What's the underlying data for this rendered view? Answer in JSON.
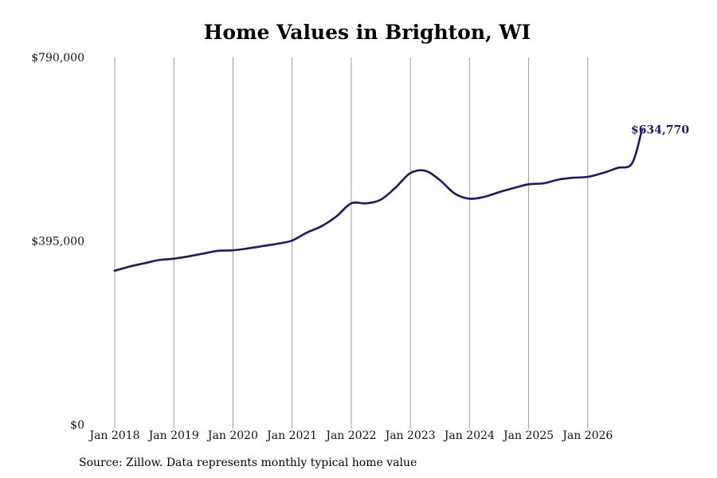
{
  "chart_data": {
    "type": "line",
    "title": "Home Values in Brighton, WI",
    "xlabel": "",
    "ylabel": "",
    "x_range": [
      "2018-01",
      "2026-12"
    ],
    "ylim": [
      0,
      790000
    ],
    "y_ticks": [
      {
        "value": 0,
        "label": "$0"
      },
      {
        "value": 395000,
        "label": "$395,000"
      },
      {
        "value": 790000,
        "label": "$790,000"
      }
    ],
    "x_ticks": [
      {
        "date": "2018-01",
        "label": "Jan 2018"
      },
      {
        "date": "2019-01",
        "label": "Jan 2019"
      },
      {
        "date": "2020-01",
        "label": "Jan 2020"
      },
      {
        "date": "2021-01",
        "label": "Jan 2021"
      },
      {
        "date": "2022-01",
        "label": "Jan 2022"
      },
      {
        "date": "2023-01",
        "label": "Jan 2023"
      },
      {
        "date": "2024-01",
        "label": "Jan 2024"
      },
      {
        "date": "2025-01",
        "label": "Jan 2025"
      },
      {
        "date": "2026-01",
        "label": "Jan 2026"
      }
    ],
    "grid": "vertical lines at x ticks",
    "line_color": "#1b1a66",
    "end_label": "$634,770",
    "series": [
      {
        "values": [
          {
            "x": "2018-01",
            "y": 331000
          },
          {
            "x": "2018-04",
            "y": 340000
          },
          {
            "x": "2018-07",
            "y": 347000
          },
          {
            "x": "2018-10",
            "y": 354000
          },
          {
            "x": "2019-01",
            "y": 357000
          },
          {
            "x": "2019-04",
            "y": 362000
          },
          {
            "x": "2019-07",
            "y": 368000
          },
          {
            "x": "2019-10",
            "y": 374000
          },
          {
            "x": "2020-01",
            "y": 375000
          },
          {
            "x": "2020-04",
            "y": 379000
          },
          {
            "x": "2020-07",
            "y": 384000
          },
          {
            "x": "2020-10",
            "y": 389000
          },
          {
            "x": "2021-01",
            "y": 396000
          },
          {
            "x": "2021-04",
            "y": 413000
          },
          {
            "x": "2021-07",
            "y": 427000
          },
          {
            "x": "2021-10",
            "y": 448000
          },
          {
            "x": "2022-01",
            "y": 476000
          },
          {
            "x": "2022-04",
            "y": 476000
          },
          {
            "x": "2022-07",
            "y": 484000
          },
          {
            "x": "2022-10",
            "y": 510000
          },
          {
            "x": "2023-01",
            "y": 541000
          },
          {
            "x": "2023-04",
            "y": 546000
          },
          {
            "x": "2023-07",
            "y": 526000
          },
          {
            "x": "2023-10",
            "y": 497000
          },
          {
            "x": "2024-01",
            "y": 486000
          },
          {
            "x": "2024-04",
            "y": 490000
          },
          {
            "x": "2024-07",
            "y": 500000
          },
          {
            "x": "2024-10",
            "y": 509000
          },
          {
            "x": "2025-01",
            "y": 517000
          },
          {
            "x": "2025-04",
            "y": 519000
          },
          {
            "x": "2025-07",
            "y": 527000
          },
          {
            "x": "2025-10",
            "y": 531000
          },
          {
            "x": "2026-01",
            "y": 533000
          },
          {
            "x": "2026-04",
            "y": 541000
          },
          {
            "x": "2026-07",
            "y": 552000
          },
          {
            "x": "2026-10",
            "y": 562000
          },
          {
            "x": "2026-12",
            "y": 634770
          }
        ]
      }
    ]
  },
  "source_note": "Source: Zillow. Data represents monthly typical home value"
}
